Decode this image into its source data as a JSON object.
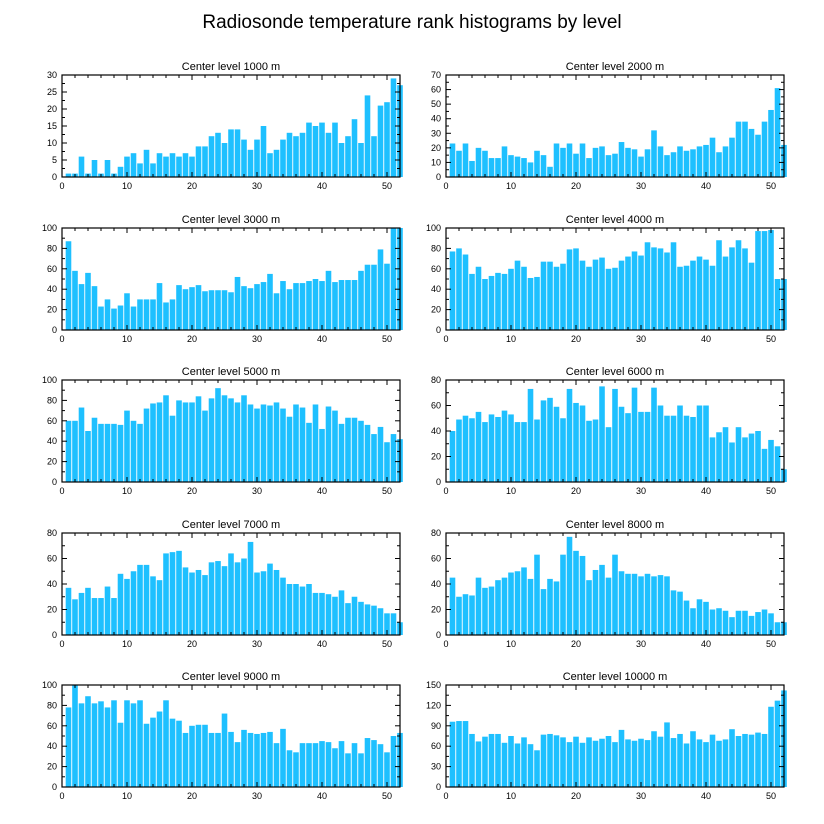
{
  "figure_title": "Radiosonde temperature rank histograms by level",
  "colors": {
    "bar": "#1ec0ff",
    "axis": "#000000",
    "background": "#ffffff"
  },
  "chart_data": [
    {
      "type": "bar",
      "title": "Center level 1000 m",
      "xlim": [
        0,
        52
      ],
      "ylim": [
        0,
        30
      ],
      "xticks": [
        0,
        10,
        20,
        30,
        40,
        50
      ],
      "yticks": [
        0,
        5,
        10,
        15,
        20,
        25,
        30
      ],
      "values": [
        1,
        1,
        6,
        1,
        5,
        1,
        5,
        1,
        3,
        6,
        7,
        4,
        8,
        4,
        7,
        6,
        7,
        6,
        7,
        6,
        9,
        9,
        12,
        13,
        10,
        14,
        14,
        11,
        8,
        11,
        15,
        7,
        8,
        11,
        13,
        12,
        13,
        16,
        15,
        16,
        13,
        16,
        10,
        12,
        17,
        10,
        24,
        12,
        21,
        22,
        29,
        27
      ]
    },
    {
      "type": "bar",
      "title": "Center level 2000 m",
      "xlim": [
        0,
        52
      ],
      "ylim": [
        0,
        70
      ],
      "xticks": [
        0,
        10,
        20,
        30,
        40,
        50
      ],
      "yticks": [
        0,
        10,
        20,
        30,
        40,
        50,
        60,
        70
      ],
      "values": [
        23,
        18,
        23,
        11,
        20,
        18,
        13,
        13,
        21,
        15,
        14,
        13,
        10,
        18,
        15,
        7,
        23,
        20,
        23,
        16,
        23,
        13,
        20,
        21,
        15,
        16,
        24,
        20,
        19,
        14,
        19,
        32,
        21,
        15,
        17,
        21,
        18,
        19,
        21,
        22,
        27,
        17,
        21,
        27,
        38,
        38,
        33,
        29,
        38,
        46,
        61,
        22
      ]
    },
    {
      "type": "bar",
      "title": "Center level 3000 m",
      "xlim": [
        0,
        52
      ],
      "ylim": [
        0,
        100
      ],
      "xticks": [
        0,
        10,
        20,
        30,
        40,
        50
      ],
      "yticks": [
        0,
        20,
        40,
        60,
        80,
        100
      ],
      "values": [
        87,
        58,
        45,
        56,
        43,
        23,
        30,
        21,
        24,
        36,
        23,
        30,
        30,
        30,
        46,
        27,
        30,
        44,
        40,
        42,
        44,
        38,
        39,
        39,
        39,
        37,
        52,
        43,
        41,
        45,
        47,
        55,
        36,
        48,
        40,
        46,
        46,
        48,
        50,
        48,
        58,
        47,
        49,
        49,
        49,
        58,
        64,
        64,
        79,
        65,
        100,
        100
      ]
    },
    {
      "type": "bar",
      "title": "Center level 4000 m",
      "xlim": [
        0,
        52
      ],
      "ylim": [
        0,
        100
      ],
      "xticks": [
        0,
        10,
        20,
        30,
        40,
        50
      ],
      "yticks": [
        0,
        20,
        40,
        60,
        80,
        100
      ],
      "values": [
        77,
        80,
        74,
        55,
        62,
        50,
        53,
        56,
        55,
        60,
        68,
        62,
        51,
        52,
        67,
        67,
        62,
        65,
        79,
        80,
        68,
        62,
        69,
        71,
        60,
        61,
        68,
        72,
        77,
        73,
        86,
        81,
        80,
        76,
        86,
        62,
        63,
        68,
        72,
        69,
        63,
        88,
        72,
        81,
        88,
        80,
        66,
        97,
        97,
        98,
        50,
        50
      ]
    },
    {
      "type": "bar",
      "title": "Center level 5000 m",
      "xlim": [
        0,
        52
      ],
      "ylim": [
        0,
        100
      ],
      "xticks": [
        0,
        10,
        20,
        30,
        40,
        50
      ],
      "yticks": [
        0,
        20,
        40,
        60,
        80,
        100
      ],
      "values": [
        60,
        60,
        73,
        50,
        63,
        57,
        57,
        57,
        56,
        70,
        60,
        57,
        72,
        77,
        78,
        85,
        65,
        80,
        78,
        78,
        84,
        70,
        82,
        92,
        85,
        82,
        78,
        85,
        76,
        72,
        76,
        75,
        78,
        72,
        64,
        76,
        73,
        58,
        76,
        52,
        74,
        70,
        57,
        63,
        63,
        60,
        56,
        47,
        54,
        39,
        47,
        42
      ]
    },
    {
      "type": "bar",
      "title": "Center level 6000 m",
      "xlim": [
        0,
        52
      ],
      "ylim": [
        0,
        80
      ],
      "xticks": [
        0,
        10,
        20,
        30,
        40,
        50
      ],
      "yticks": [
        0,
        20,
        40,
        60,
        80
      ],
      "values": [
        40,
        49,
        52,
        50,
        55,
        47,
        53,
        51,
        56,
        53,
        47,
        47,
        73,
        49,
        64,
        66,
        59,
        50,
        73,
        62,
        60,
        48,
        49,
        75,
        43,
        73,
        59,
        54,
        74,
        55,
        55,
        74,
        60,
        52,
        52,
        60,
        52,
        51,
        60,
        60,
        35,
        39,
        43,
        31,
        43,
        35,
        38,
        40,
        26,
        33,
        28,
        10
      ]
    },
    {
      "type": "bar",
      "title": "Center level 7000 m",
      "xlim": [
        0,
        52
      ],
      "ylim": [
        0,
        80
      ],
      "xticks": [
        0,
        10,
        20,
        30,
        40,
        50
      ],
      "yticks": [
        0,
        20,
        40,
        60,
        80
      ],
      "values": [
        37,
        28,
        33,
        37,
        29,
        29,
        38,
        29,
        48,
        44,
        50,
        55,
        55,
        46,
        43,
        64,
        65,
        66,
        53,
        49,
        51,
        47,
        57,
        58,
        54,
        64,
        57,
        60,
        73,
        49,
        50,
        56,
        51,
        45,
        40,
        40,
        38,
        40,
        33,
        33,
        32,
        30,
        35,
        25,
        30,
        26,
        24,
        23,
        21,
        17,
        17,
        10
      ]
    },
    {
      "type": "bar",
      "title": "Center level 8000 m",
      "xlim": [
        0,
        52
      ],
      "ylim": [
        0,
        80
      ],
      "xticks": [
        0,
        10,
        20,
        30,
        40,
        50
      ],
      "yticks": [
        0,
        20,
        40,
        60,
        80
      ],
      "values": [
        45,
        30,
        32,
        31,
        45,
        37,
        38,
        43,
        45,
        49,
        50,
        53,
        44,
        63,
        36,
        44,
        42,
        63,
        77,
        66,
        62,
        43,
        51,
        55,
        45,
        63,
        50,
        48,
        48,
        46,
        48,
        46,
        47,
        46,
        35,
        34,
        27,
        21,
        28,
        26,
        20,
        21,
        19,
        14,
        19,
        19,
        15,
        18,
        20,
        17,
        10,
        10
      ]
    },
    {
      "type": "bar",
      "title": "Center level 9000 m",
      "xlim": [
        0,
        52
      ],
      "ylim": [
        0,
        100
      ],
      "xticks": [
        0,
        10,
        20,
        30,
        40,
        50
      ],
      "yticks": [
        0,
        20,
        40,
        60,
        80,
        100
      ],
      "values": [
        78,
        100,
        82,
        89,
        82,
        84,
        78,
        85,
        63,
        85,
        82,
        85,
        62,
        68,
        74,
        85,
        67,
        65,
        53,
        60,
        61,
        61,
        53,
        53,
        72,
        54,
        44,
        56,
        53,
        52,
        53,
        54,
        43,
        57,
        36,
        34,
        43,
        43,
        43,
        45,
        44,
        38,
        45,
        33,
        43,
        33,
        48,
        46,
        42,
        34,
        50,
        53
      ]
    },
    {
      "type": "bar",
      "title": "Center level 10000 m",
      "xlim": [
        0,
        52
      ],
      "ylim": [
        0,
        150
      ],
      "xticks": [
        0,
        10,
        20,
        30,
        40,
        50
      ],
      "yticks": [
        0,
        30,
        60,
        90,
        120,
        150
      ],
      "values": [
        96,
        97,
        97,
        78,
        67,
        74,
        78,
        78,
        65,
        75,
        64,
        73,
        63,
        54,
        77,
        78,
        76,
        73,
        66,
        74,
        65,
        73,
        68,
        71,
        75,
        66,
        84,
        70,
        68,
        71,
        69,
        82,
        74,
        95,
        72,
        78,
        64,
        82,
        70,
        66,
        77,
        68,
        70,
        85,
        75,
        78,
        77,
        80,
        78,
        118,
        127,
        142
      ]
    }
  ]
}
